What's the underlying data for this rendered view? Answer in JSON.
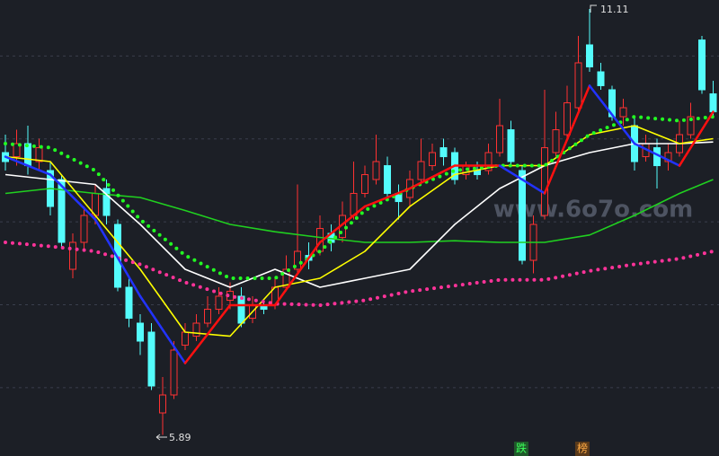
{
  "chart_data": [
    {
      "type": "candlestick",
      "up_color": "#ff3232",
      "down_color": "#54fcfc",
      "xlim": [
        -0.48,
        63.52
      ],
      "ylim": [
        5.632,
        11.22
      ],
      "grid": true,
      "values": [
        [
          9.35,
          9.57,
          9.13,
          9.24
        ],
        [
          9.3,
          9.63,
          9.19,
          9.46
        ],
        [
          9.46,
          9.68,
          9.08,
          9.19
        ],
        [
          9.24,
          9.52,
          9.13,
          9.41
        ],
        [
          9.13,
          9.24,
          8.58,
          8.69
        ],
        [
          9.02,
          9.08,
          8.2,
          8.25
        ],
        [
          7.92,
          8.36,
          7.81,
          8.25
        ],
        [
          8.25,
          8.69,
          8.14,
          8.58
        ],
        [
          8.58,
          8.96,
          8.47,
          8.85
        ],
        [
          8.91,
          9.02,
          8.47,
          8.58
        ],
        [
          8.47,
          8.53,
          7.65,
          7.7
        ],
        [
          7.7,
          7.81,
          7.21,
          7.32
        ],
        [
          7.26,
          7.37,
          6.87,
          7.04
        ],
        [
          7.15,
          7.26,
          6.44,
          6.49
        ],
        [
          6.16,
          6.6,
          5.89,
          6.38
        ],
        [
          6.38,
          7.04,
          6.33,
          6.93
        ],
        [
          6.99,
          7.26,
          6.93,
          7.15
        ],
        [
          7.1,
          7.37,
          7.04,
          7.26
        ],
        [
          7.26,
          7.59,
          7.21,
          7.43
        ],
        [
          7.43,
          7.7,
          7.37,
          7.59
        ],
        [
          7.54,
          7.76,
          7.43,
          7.65
        ],
        [
          7.59,
          7.7,
          7.21,
          7.26
        ],
        [
          7.32,
          7.59,
          7.26,
          7.48
        ],
        [
          7.48,
          7.54,
          7.37,
          7.43
        ],
        [
          7.48,
          7.81,
          7.43,
          7.7
        ],
        [
          7.7,
          8.09,
          7.65,
          7.92
        ],
        [
          7.92,
          8.96,
          7.87,
          8.14
        ],
        [
          8.09,
          8.25,
          7.92,
          8.03
        ],
        [
          8.14,
          8.58,
          8.09,
          8.42
        ],
        [
          8.36,
          8.47,
          8.14,
          8.25
        ],
        [
          8.31,
          8.75,
          8.25,
          8.58
        ],
        [
          8.58,
          9.24,
          8.53,
          8.85
        ],
        [
          8.85,
          9.19,
          8.8,
          9.08
        ],
        [
          9.02,
          9.57,
          8.96,
          9.24
        ],
        [
          9.19,
          9.3,
          8.8,
          8.85
        ],
        [
          8.85,
          8.96,
          8.53,
          8.75
        ],
        [
          8.8,
          9.13,
          8.69,
          9.02
        ],
        [
          9.02,
          9.52,
          8.96,
          9.24
        ],
        [
          9.19,
          9.46,
          9.13,
          9.35
        ],
        [
          9.41,
          9.52,
          9.19,
          9.3
        ],
        [
          9.35,
          9.41,
          8.96,
          9.02
        ],
        [
          9.08,
          9.24,
          9.02,
          9.19
        ],
        [
          9.13,
          9.24,
          9.02,
          9.08
        ],
        [
          9.13,
          9.46,
          9.08,
          9.35
        ],
        [
          9.35,
          10.01,
          9.3,
          9.68
        ],
        [
          9.63,
          9.74,
          9.19,
          9.24
        ],
        [
          9.13,
          9.19,
          7.98,
          8.03
        ],
        [
          8.03,
          8.58,
          7.87,
          8.47
        ],
        [
          8.58,
          10.12,
          8.53,
          9.41
        ],
        [
          9.35,
          9.85,
          9.3,
          9.63
        ],
        [
          9.57,
          10.17,
          9.52,
          9.96
        ],
        [
          9.9,
          10.78,
          9.85,
          10.45
        ],
        [
          10.67,
          11.11,
          10.34,
          10.4
        ],
        [
          10.34,
          10.45,
          10.12,
          10.17
        ],
        [
          10.12,
          10.17,
          9.74,
          9.79
        ],
        [
          9.79,
          10.01,
          9.68,
          9.9
        ],
        [
          9.68,
          9.79,
          9.13,
          9.24
        ],
        [
          9.3,
          9.57,
          9.24,
          9.46
        ],
        [
          9.41,
          9.52,
          8.91,
          9.19
        ],
        [
          9.24,
          9.46,
          9.13,
          9.35
        ],
        [
          9.35,
          9.74,
          9.3,
          9.57
        ],
        [
          9.57,
          9.96,
          9.52,
          9.79
        ],
        [
          10.73,
          10.78,
          10.07,
          10.12
        ],
        [
          10.07,
          10.23,
          9.79,
          9.85
        ]
      ],
      "annotations": [
        "www.6o7o.com",
        "跌",
        "榜"
      ]
    },
    {
      "type": "line",
      "xlim": [
        -0.48,
        63.52
      ],
      "ylim": [
        5.632,
        11.22
      ],
      "x": [
        0,
        4,
        8,
        12,
        16,
        20,
        24,
        28,
        32,
        36,
        40,
        44,
        48,
        52,
        56,
        60,
        63
      ],
      "series": [
        {
          "color": "#20d020",
          "style": "solid",
          "values": [
            8.85,
            8.91,
            8.85,
            8.8,
            8.64,
            8.47,
            8.38,
            8.31,
            8.25,
            8.25,
            8.27,
            8.25,
            8.25,
            8.34,
            8.58,
            8.85,
            9.02
          ]
        },
        {
          "color": "#ffffff",
          "style": "solid",
          "values": [
            9.08,
            9.02,
            8.96,
            8.47,
            7.92,
            7.7,
            7.92,
            7.7,
            7.81,
            7.92,
            8.47,
            8.91,
            9.19,
            9.35,
            9.46,
            9.46,
            9.48
          ]
        },
        {
          "color": "#ffff00",
          "style": "solid",
          "values": [
            9.3,
            9.24,
            8.58,
            7.92,
            7.15,
            7.1,
            7.7,
            7.81,
            8.14,
            8.69,
            9.08,
            9.19,
            9.19,
            9.57,
            9.68,
            9.46,
            9.52
          ]
        },
        {
          "color": "#ff3399",
          "style": "dotted",
          "values": [
            8.25,
            8.2,
            8.14,
            7.98,
            7.76,
            7.59,
            7.5,
            7.48,
            7.54,
            7.65,
            7.72,
            7.79,
            7.79,
            7.9,
            7.98,
            8.05,
            8.14
          ]
        },
        {
          "color": "#22ff22",
          "style": "dotted",
          "values": [
            9.46,
            9.41,
            9.13,
            8.53,
            8.09,
            7.81,
            7.81,
            8.14,
            8.64,
            8.91,
            9.13,
            9.19,
            9.19,
            9.57,
            9.79,
            9.74,
            9.79
          ]
        },
        {
          "color": "#ff1010",
          "down_color": "#2233ff",
          "style": "trend",
          "values": [
            9.3,
            9.08,
            8.53,
            7.59,
            6.77,
            7.48,
            7.48,
            8.25,
            8.69,
            8.91,
            9.19,
            9.19,
            8.85,
            10.17,
            9.46,
            9.19,
            9.85
          ]
        }
      ]
    }
  ]
}
